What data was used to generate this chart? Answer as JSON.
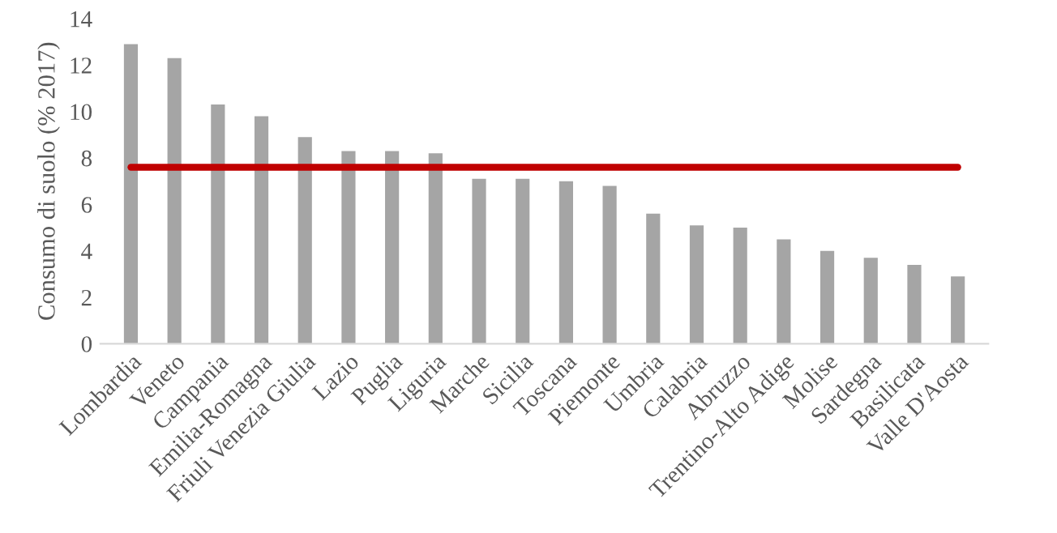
{
  "chart_data": {
    "type": "bar",
    "ylabel": "Consumo di suolo (% 2017)",
    "categories": [
      "Lombardia",
      "Veneto",
      "Campania",
      "Emilia-Romagna",
      "Friuli Venezia Giulia",
      "Lazio",
      "Puglia",
      "Liguria",
      "Marche",
      "Sicilia",
      "Toscana",
      "Piemonte",
      "Umbria",
      "Calabria",
      "Abruzzo",
      "Trentino-Alto Adige",
      "Molise",
      "Sardegna",
      "Basilicata",
      "Valle D'Aosta"
    ],
    "values": [
      12.9,
      12.3,
      10.3,
      9.8,
      8.9,
      8.3,
      8.3,
      8.2,
      7.1,
      7.1,
      7.0,
      6.8,
      5.6,
      5.1,
      5.0,
      4.5,
      4.0,
      3.7,
      3.4,
      2.9
    ],
    "color": "#a5a5a5",
    "ylim": [
      0,
      14
    ],
    "yticks": [
      0,
      2,
      4,
      6,
      8,
      10,
      12,
      14
    ],
    "ref_lines": [
      {
        "axis": "y",
        "value": 7.6,
        "color": "#c00000",
        "line_style": "solid"
      }
    ],
    "grid": false,
    "legend": false
  }
}
